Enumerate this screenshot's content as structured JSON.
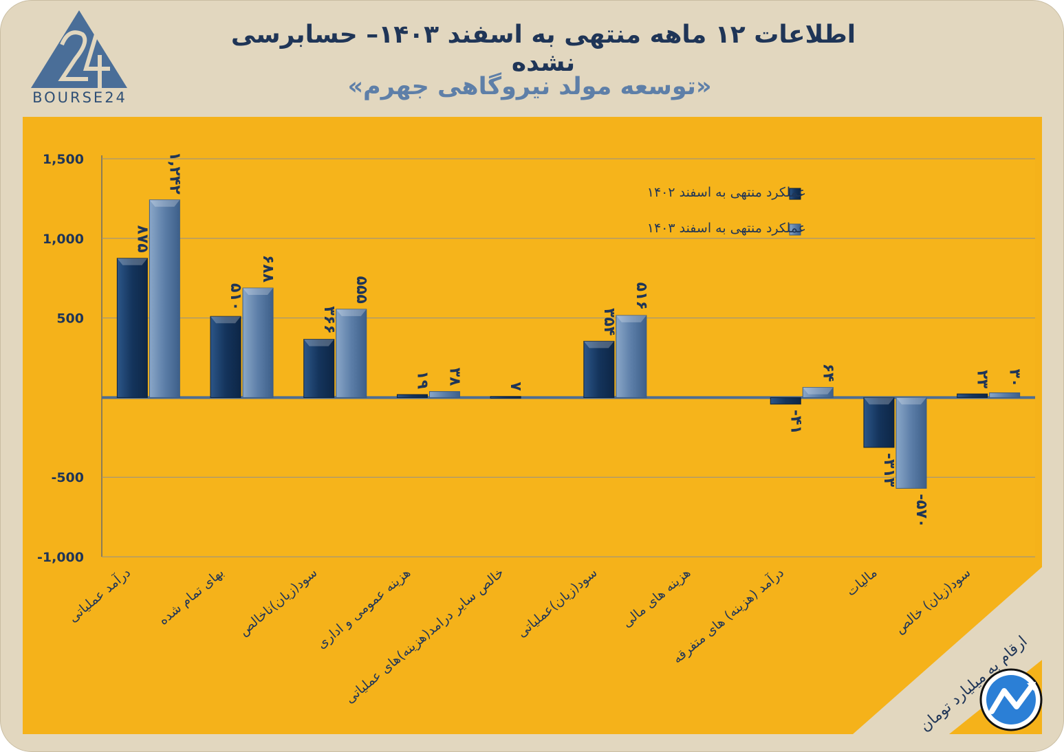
{
  "header": {
    "title": "اطلاعات ۱۲ ماهه منتهی به اسفند ۱۴۰۳– حسابرسی نشده",
    "subtitle": "«توسعه مولد نیروگاهی جهرم»"
  },
  "logo": {
    "text": "BOURSE24",
    "brand_color": "#4a6e98"
  },
  "unit_note": "ارقام به میلیارد تومان",
  "colors": {
    "background": "#e2d7bf",
    "panel": "#f5b21a",
    "plot": "#f6b41b",
    "series_1402": "#1a3a63",
    "series_1403": "#5c7ea8",
    "text": "#1f3557"
  },
  "chart_data": {
    "type": "bar",
    "ylim": [
      -1000,
      1500
    ],
    "yticks": [
      -1000,
      -500,
      500,
      1000,
      1500
    ],
    "ytick_labels": [
      "-1,000",
      "-500",
      "500",
      "1,000",
      "1,500"
    ],
    "grid": true,
    "legend_position": "top-right",
    "categories": [
      "درآمد عملیاتی",
      "بهای تمام شده",
      "سود(زیان)ناخالص",
      "هزینه عمومی و اداری",
      "خالص سایر درامد(هزینه)های عملیاتی",
      "سود(زیان)عملیاتی",
      "هزینه های مالی",
      "درآمد (هزینه) های متفرقه",
      "مالیات",
      "سود(زیان) خالص"
    ],
    "series": [
      {
        "name": "عملکرد منتهی به اسفند ۱۴۰۲",
        "values": [
          875,
          510,
          366,
          19,
          7,
          354,
          null,
          -41,
          -313,
          23
        ],
        "labels": [
          "۸۷۵",
          "۵۱۰",
          "۳۶۶",
          "۱۹",
          "۷",
          "۳۵۴",
          "",
          "-۴۱",
          "-۳۱۳",
          "۲۳"
        ]
      },
      {
        "name": "عملکرد منتهی به اسفند ۱۴۰۳",
        "values": [
          1242,
          688,
          555,
          38,
          null,
          516,
          null,
          64,
          -570,
          30
        ],
        "labels": [
          "۱,۲۴۲",
          "۶۸۸",
          "۵۵۵",
          "۳۸",
          "",
          "۵۱۶",
          "",
          "۶۴",
          "-۵۷۰",
          "۳۰"
        ]
      }
    ]
  }
}
